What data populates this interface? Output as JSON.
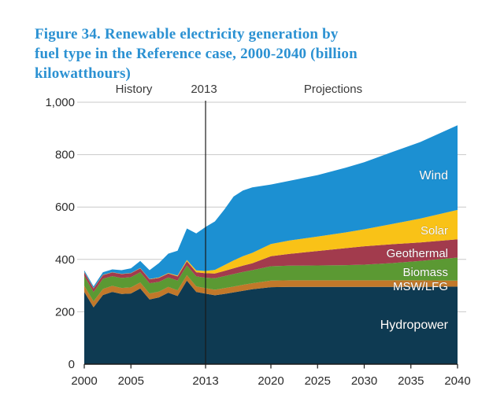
{
  "title": {
    "lines": [
      "Figure 34. Renewable electricity generation by",
      "fuel type in the Reference case, 2000-2040 (billion",
      "kilowatthours)"
    ],
    "color": "#2B91D2"
  },
  "annotations": {
    "history_label": "History",
    "divider_year_label": "2013",
    "projections_label": "Projections"
  },
  "chart_data": {
    "type": "area",
    "stacked": true,
    "unit": "billion kilowatthours",
    "title": "Renewable electricity generation by fuel type in the Reference case, 2000-2040",
    "xlabel": "",
    "ylabel": "",
    "xlim": [
      2000,
      2040
    ],
    "ylim": [
      0,
      1000
    ],
    "grid": true,
    "divider_x": 2013,
    "x": [
      2000,
      2001,
      2002,
      2003,
      2004,
      2005,
      2006,
      2007,
      2008,
      2009,
      2010,
      2011,
      2012,
      2013,
      2014,
      2015,
      2016,
      2017,
      2018,
      2020,
      2022,
      2025,
      2028,
      2030,
      2033,
      2036,
      2040
    ],
    "series": [
      {
        "name": "Hydropower",
        "color": "#0E3A52",
        "values": [
          276,
          217,
          264,
          276,
          268,
          270,
          289,
          247,
          255,
          273,
          260,
          319,
          276,
          269,
          263,
          268,
          274,
          280,
          286,
          294,
          295,
          295,
          295,
          295,
          295,
          295,
          296
        ]
      },
      {
        "name": "MSW/LFG",
        "color": "#C1782A",
        "values": [
          23,
          23,
          23,
          23,
          23,
          23,
          23,
          23,
          22,
          22,
          22,
          21,
          21,
          21,
          21,
          22,
          22,
          23,
          23,
          25,
          25,
          25,
          25,
          25,
          25,
          25,
          23
        ]
      },
      {
        "name": "Biomass",
        "color": "#5B9933",
        "values": [
          38,
          35,
          39,
          37,
          38,
          39,
          39,
          39,
          37,
          36,
          37,
          37,
          38,
          40,
          44,
          46,
          48,
          49,
          50,
          55,
          56,
          57,
          58,
          60,
          66,
          74,
          88
        ]
      },
      {
        "name": "Geothermal",
        "color": "#A23B4D",
        "values": [
          14,
          14,
          14,
          14,
          15,
          15,
          15,
          15,
          15,
          15,
          16,
          16,
          16,
          17,
          18,
          20,
          22,
          24,
          26,
          38,
          45,
          55,
          65,
          70,
          72,
          71,
          70
        ]
      },
      {
        "name": "Solar",
        "color": "#F9C217",
        "values": [
          1,
          1,
          1,
          1,
          1,
          1,
          1,
          1,
          2,
          2,
          3,
          5,
          7,
          9,
          14,
          22,
          30,
          36,
          40,
          47,
          51,
          55,
          60,
          65,
          77,
          91,
          112
        ]
      },
      {
        "name": "Wind",
        "color": "#1C90D2",
        "values": [
          6,
          7,
          10,
          11,
          14,
          18,
          27,
          34,
          55,
          74,
          95,
          120,
          141,
          168,
          185,
          212,
          244,
          251,
          250,
          227,
          228,
          235,
          247,
          256,
          275,
          292,
          323
        ]
      }
    ],
    "y_ticks": [
      {
        "value": 0,
        "label": "0"
      },
      {
        "value": 200,
        "label": "200"
      },
      {
        "value": 400,
        "label": "400"
      },
      {
        "value": 600,
        "label": "600"
      },
      {
        "value": 800,
        "label": "800"
      },
      {
        "value": 1000,
        "label": "1,000"
      }
    ],
    "x_ticks": [
      {
        "value": 2000,
        "label": "2000"
      },
      {
        "value": 2005,
        "label": "2005"
      },
      {
        "value": 2013,
        "label": "2013"
      },
      {
        "value": 2020,
        "label": "2020"
      },
      {
        "value": 2025,
        "label": "2025"
      },
      {
        "value": 2030,
        "label": "2030"
      },
      {
        "value": 2035,
        "label": "2035"
      },
      {
        "value": 2040,
        "label": "2040"
      }
    ],
    "legend": "labels drawn inside areas"
  },
  "colors": {
    "grid": "#C9C9C9",
    "axis": "#1A1A1A",
    "divider_line": "#1A1A1A",
    "tick_text": "#2B2B2B",
    "annotation_text": "#3A3A3A",
    "area_label_text": "#FFFFFF"
  }
}
